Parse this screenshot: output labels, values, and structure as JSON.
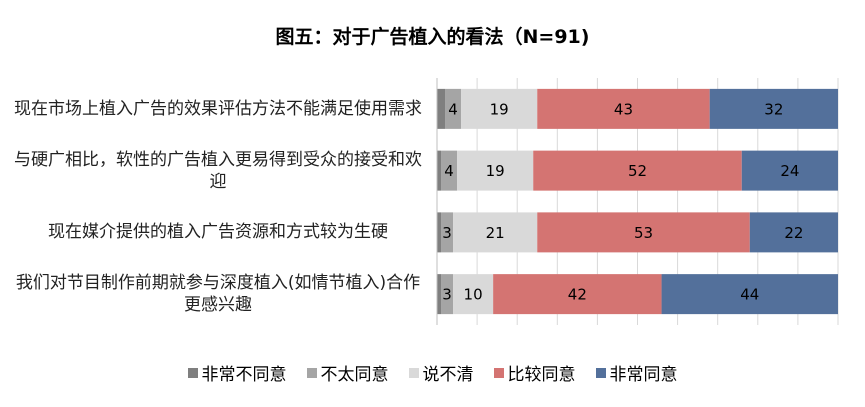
{
  "chart_data": {
    "type": "stacked_bar_horizontal",
    "title": "图五：对于广告植入的看法（N=91)",
    "categories": [
      "现在市场上植入广告的效果评估方法不能满足使用需求",
      "与硬广相比，软性的广告植入更易得到受众的接受和欢迎",
      "现在媒介提供的植入广告资源和方式较为生硬",
      "我们对节目制作前期就参与深度植入(如情节植入)合作更感兴趣"
    ],
    "series": [
      {
        "name": "非常不同意",
        "color": "#7f7f7f",
        "values": [
          2,
          1,
          1,
          1
        ]
      },
      {
        "name": "不太同意",
        "color": "#a5a5a5",
        "values": [
          4,
          4,
          3,
          3
        ]
      },
      {
        "name": "说不清",
        "color": "#d9d9d9",
        "values": [
          19,
          19,
          21,
          10
        ]
      },
      {
        "name": "比较同意",
        "color": "#d47472",
        "values": [
          43,
          52,
          53,
          42
        ]
      },
      {
        "name": "非常同意",
        "color": "#53709b",
        "values": [
          32,
          24,
          22,
          44
        ]
      }
    ],
    "labeled_series": [
      1,
      2,
      3,
      4
    ],
    "xlim": [
      0,
      100
    ],
    "xticks": [
      0,
      10,
      20,
      30,
      40,
      50,
      60,
      70,
      80,
      90,
      100
    ],
    "grid": true
  }
}
